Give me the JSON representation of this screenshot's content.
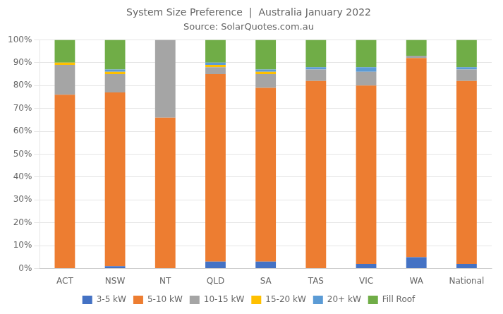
{
  "chart_data": {
    "type": "bar",
    "stacked": true,
    "title": "System Size Preference  |  Australia January 2022",
    "subtitle": "Source: SolarQuotes.com.au",
    "categories": [
      "ACT",
      "NSW",
      "NT",
      "QLD",
      "SA",
      "TAS",
      "VIC",
      "WA",
      "National"
    ],
    "series": [
      {
        "name": "3-5 kW",
        "color": "#4472c4",
        "values": [
          0,
          1,
          0,
          3,
          3,
          0,
          2,
          5,
          2
        ]
      },
      {
        "name": "5-10 kW",
        "color": "#ed7d31",
        "values": [
          76,
          76,
          66,
          82,
          76,
          82,
          78,
          87,
          80
        ]
      },
      {
        "name": "10-15 kW",
        "color": "#a5a5a5",
        "values": [
          13,
          8,
          34,
          3,
          6,
          5,
          6,
          1,
          5
        ]
      },
      {
        "name": "15-20 kW",
        "color": "#ffc000",
        "values": [
          1,
          1,
          0,
          1,
          1,
          0,
          0,
          0,
          0
        ]
      },
      {
        "name": "20+ kW",
        "color": "#5b9bd5",
        "values": [
          0,
          1,
          0,
          1,
          1,
          1,
          2,
          0,
          1
        ]
      },
      {
        "name": "Fill Roof",
        "color": "#70ad47",
        "values": [
          10,
          13,
          0,
          10,
          13,
          12,
          12,
          7,
          12
        ]
      }
    ],
    "ylim": [
      0,
      100
    ],
    "yticks": [
      {
        "value": 0,
        "label": "0%"
      },
      {
        "value": 10,
        "label": "10%"
      },
      {
        "value": 20,
        "label": "20%"
      },
      {
        "value": 30,
        "label": "30%"
      },
      {
        "value": 40,
        "label": "40%"
      },
      {
        "value": 50,
        "label": "50%"
      },
      {
        "value": 60,
        "label": "60%"
      },
      {
        "value": 70,
        "label": "70%"
      },
      {
        "value": 80,
        "label": "80%"
      },
      {
        "value": 90,
        "label": "90%"
      },
      {
        "value": 100,
        "label": "100%"
      }
    ],
    "grid": true,
    "legend": "bottom"
  }
}
